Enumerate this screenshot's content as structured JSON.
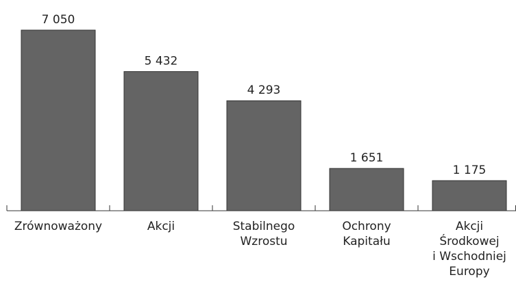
{
  "chart_data": {
    "type": "bar",
    "categories": [
      [
        "Zrównoważony"
      ],
      [
        "Akcji"
      ],
      [
        "Stabilnego",
        "Wzrostu"
      ],
      [
        "Ochrony",
        "Kapitału"
      ],
      [
        "Akcji",
        "Środkowej",
        "i Wschodniej",
        "Europy"
      ]
    ],
    "values": [
      7050,
      5432,
      4293,
      1651,
      1175
    ],
    "value_labels": [
      "7 050",
      "5 432",
      "4 293",
      "1 651",
      "1 175"
    ],
    "color": "#646464"
  }
}
